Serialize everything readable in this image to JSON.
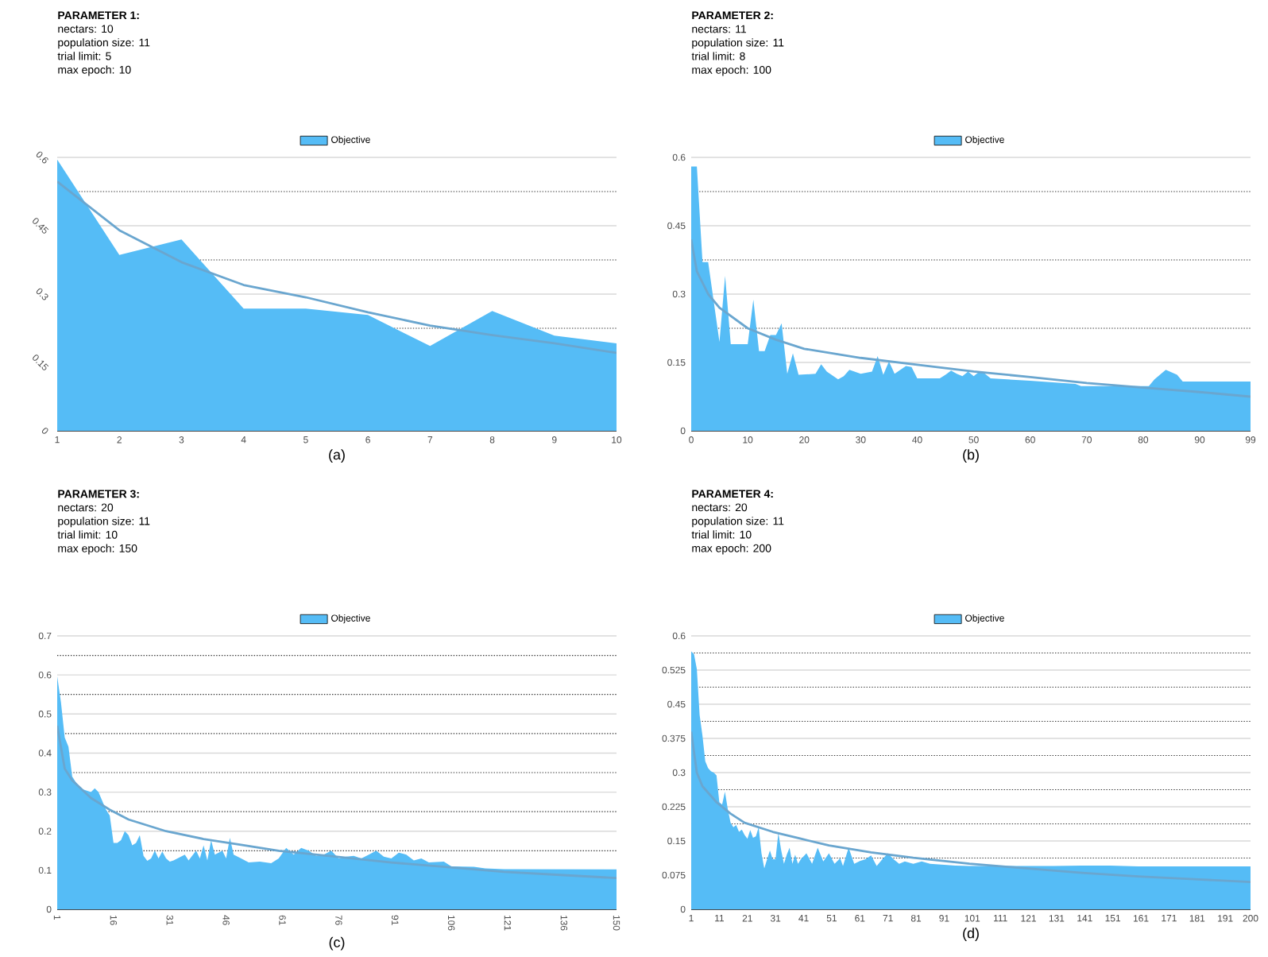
{
  "chart_data": [
    {
      "type": "area",
      "title": "PARAMETER 1:",
      "annotations": [
        "nectars: 10",
        "population size: 11",
        "trial limit: 5",
        "max epoch: 10"
      ],
      "xlabel": "(a)",
      "legend": "top",
      "grid": "y",
      "xlim": [
        1,
        10
      ],
      "xticks": [
        1,
        2,
        3,
        4,
        5,
        6,
        7,
        8,
        9,
        10
      ],
      "ylim": [
        0,
        0.6
      ],
      "yticks": [
        0,
        {
          "value": 0.075,
          "label": null
        },
        0.15,
        {
          "value": 0.225,
          "label": null
        },
        0.3,
        {
          "value": 0.375,
          "label": null
        },
        0.45,
        {
          "value": 0.525,
          "label": null
        },
        0.6
      ],
      "series": [
        {
          "name": "Objective",
          "color": "#55bcf6",
          "x": [
            1,
            2,
            3,
            4,
            5,
            6,
            7,
            8,
            9,
            10
          ],
          "values": [
            0.595,
            0.386,
            0.42,
            0.268,
            0.268,
            0.254,
            0.186,
            0.263,
            0.209,
            0.192
          ]
        },
        {
          "type": "line",
          "color": "#6aa6cf",
          "x": [
            1,
            2,
            3,
            4,
            5,
            6,
            7,
            8,
            9,
            10
          ],
          "values": [
            0.547,
            0.44,
            0.37,
            0.32,
            0.293,
            0.26,
            0.231,
            0.21,
            0.192,
            0.171
          ]
        }
      ]
    },
    {
      "type": "area",
      "title": "PARAMETER 2:",
      "annotations": [
        "nectars: 11",
        "population size: 11",
        "trial limit: 8",
        "max epoch: 100"
      ],
      "xlabel": "(b)",
      "legend": "top",
      "grid": "y",
      "xlim": [
        0,
        99
      ],
      "xticks": [
        0,
        10,
        20,
        30,
        40,
        50,
        60,
        70,
        80,
        90,
        99
      ],
      "ylim": [
        0,
        0.6
      ],
      "yticks": [
        0,
        {
          "value": 0.075,
          "label": null
        },
        0.15,
        {
          "value": 0.225,
          "label": null
        },
        0.3,
        {
          "value": 0.375,
          "label": null
        },
        0.45,
        {
          "value": 0.525,
          "label": null
        },
        0.6
      ],
      "series": [
        {
          "name": "Objective",
          "color": "#55bcf6",
          "x": [
            0,
            1,
            2,
            3,
            5,
            6,
            7,
            10,
            11,
            12,
            13,
            14,
            15,
            16,
            17,
            18,
            19,
            22,
            23,
            24,
            26,
            27,
            28,
            30,
            32,
            33,
            34,
            35,
            36,
            38,
            39,
            40,
            44,
            45,
            46,
            47,
            48,
            49,
            50,
            51,
            52,
            53,
            60,
            68,
            69,
            81,
            82,
            84,
            86,
            87,
            99
          ],
          "values": [
            0.58,
            0.58,
            0.37,
            0.37,
            0.195,
            0.34,
            0.19,
            0.19,
            0.288,
            0.175,
            0.175,
            0.21,
            0.21,
            0.236,
            0.125,
            0.17,
            0.123,
            0.125,
            0.146,
            0.13,
            0.113,
            0.12,
            0.134,
            0.125,
            0.13,
            0.164,
            0.123,
            0.152,
            0.125,
            0.142,
            0.14,
            0.115,
            0.115,
            0.123,
            0.132,
            0.125,
            0.12,
            0.13,
            0.12,
            0.13,
            0.125,
            0.115,
            0.11,
            0.103,
            0.098,
            0.098,
            0.113,
            0.134,
            0.123,
            0.108,
            0.108
          ]
        },
        {
          "type": "line",
          "color": "#6aa6cf",
          "x": [
            0,
            1,
            3,
            5,
            10,
            15,
            20,
            30,
            40,
            50,
            60,
            70,
            80,
            90,
            99
          ],
          "values": [
            0.42,
            0.35,
            0.3,
            0.27,
            0.225,
            0.2,
            0.18,
            0.16,
            0.145,
            0.13,
            0.118,
            0.105,
            0.095,
            0.085,
            0.075
          ]
        }
      ]
    },
    {
      "type": "area",
      "title": "PARAMETER 3:",
      "annotations": [
        "nectars: 20",
        "population size: 11",
        "trial limit: 10",
        "max epoch: 150"
      ],
      "xlabel": "(c)",
      "legend": "top",
      "grid": "y",
      "xlim": [
        1,
        150
      ],
      "xticks": [
        1,
        16,
        31,
        46,
        61,
        76,
        91,
        106,
        121,
        136,
        150
      ],
      "ylim": [
        0,
        0.7
      ],
      "yticks": [
        0,
        0.1,
        {
          "value": 0.15,
          "label": null
        },
        0.2,
        {
          "value": 0.25,
          "label": null
        },
        0.3,
        {
          "value": 0.35,
          "label": null
        },
        0.4,
        {
          "value": 0.45,
          "label": null
        },
        0.5,
        {
          "value": 0.55,
          "label": null
        },
        0.6,
        {
          "value": 0.65,
          "label": null
        },
        0.7
      ],
      "series": [
        {
          "name": "Objective",
          "color": "#55bcf6",
          "x": [
            1,
            2,
            3,
            4,
            5,
            7,
            10,
            11,
            12,
            14,
            15,
            16,
            17,
            18,
            19,
            20,
            21,
            22,
            23,
            24,
            25,
            26,
            27,
            28,
            29,
            30,
            31,
            32,
            35,
            36,
            38,
            39,
            40,
            41,
            42,
            43,
            45,
            46,
            47,
            48,
            50,
            52,
            55,
            58,
            60,
            62,
            64,
            66,
            68,
            70,
            72,
            74,
            76,
            78,
            80,
            82,
            84,
            86,
            88,
            90,
            92,
            94,
            96,
            98,
            100,
            104,
            106,
            112,
            115,
            120,
            150
          ],
          "values": [
            0.596,
            0.53,
            0.44,
            0.416,
            0.34,
            0.31,
            0.3,
            0.31,
            0.3,
            0.255,
            0.24,
            0.17,
            0.17,
            0.177,
            0.2,
            0.19,
            0.164,
            0.17,
            0.19,
            0.137,
            0.124,
            0.13,
            0.15,
            0.13,
            0.148,
            0.13,
            0.122,
            0.125,
            0.14,
            0.125,
            0.15,
            0.13,
            0.164,
            0.125,
            0.177,
            0.14,
            0.15,
            0.13,
            0.183,
            0.14,
            0.13,
            0.12,
            0.122,
            0.118,
            0.13,
            0.157,
            0.14,
            0.157,
            0.15,
            0.137,
            0.14,
            0.15,
            0.13,
            0.135,
            0.137,
            0.13,
            0.14,
            0.15,
            0.135,
            0.13,
            0.145,
            0.14,
            0.125,
            0.13,
            0.12,
            0.122,
            0.11,
            0.109,
            0.105,
            0.103,
            0.102
          ]
        },
        {
          "type": "line",
          "color": "#6aa6cf",
          "x": [
            1,
            3,
            5,
            10,
            15,
            20,
            30,
            40,
            50,
            60,
            75,
            90,
            105,
            120,
            135,
            150
          ],
          "values": [
            0.47,
            0.36,
            0.33,
            0.285,
            0.255,
            0.23,
            0.2,
            0.18,
            0.165,
            0.15,
            0.135,
            0.12,
            0.108,
            0.096,
            0.088,
            0.08
          ]
        }
      ]
    },
    {
      "type": "area",
      "title": "PARAMETER 4:",
      "annotations": [
        "nectars: 20",
        "population size: 11",
        "trial limit: 10",
        "max epoch: 200"
      ],
      "xlabel": "(d)",
      "legend": "top",
      "grid": "y",
      "xlim": [
        1,
        200
      ],
      "xticks": [
        1,
        11,
        21,
        31,
        41,
        51,
        61,
        71,
        81,
        91,
        101,
        111,
        121,
        131,
        141,
        151,
        161,
        171,
        181,
        191,
        200
      ],
      "ylim": [
        0,
        0.6
      ],
      "yticks": [
        0,
        0.075,
        {
          "value": 0.1125,
          "label": null
        },
        0.15,
        {
          "value": 0.1875,
          "label": null
        },
        0.225,
        {
          "value": 0.2625,
          "label": null
        },
        0.3,
        {
          "value": 0.3375,
          "label": null
        },
        0.375,
        {
          "value": 0.4125,
          "label": null
        },
        0.45,
        {
          "value": 0.4875,
          "label": null
        },
        0.525,
        {
          "value": 0.5625,
          "label": null
        },
        0.6
      ],
      "series": [
        {
          "name": "Objective",
          "color": "#55bcf6",
          "x": [
            1,
            2,
            3,
            4,
            5,
            6,
            7,
            8,
            9,
            10,
            11,
            12,
            13,
            14,
            15,
            16,
            17,
            18,
            19,
            20,
            21,
            22,
            23,
            24,
            25,
            26,
            27,
            28,
            29,
            30,
            31,
            32,
            33,
            34,
            35,
            36,
            37,
            38,
            39,
            40,
            42,
            44,
            46,
            48,
            50,
            52,
            54,
            55,
            57,
            59,
            61,
            63,
            65,
            67,
            69,
            71,
            73,
            75,
            77,
            80,
            83,
            86,
            90,
            95,
            100,
            110,
            120,
            130,
            140,
            150,
            160,
            170,
            180,
            190,
            200
          ],
          "values": [
            0.566,
            0.56,
            0.527,
            0.426,
            0.381,
            0.325,
            0.31,
            0.303,
            0.3,
            0.294,
            0.235,
            0.23,
            0.258,
            0.22,
            0.19,
            0.18,
            0.185,
            0.17,
            0.175,
            0.163,
            0.155,
            0.174,
            0.157,
            0.16,
            0.18,
            0.123,
            0.09,
            0.11,
            0.129,
            0.11,
            0.11,
            0.168,
            0.13,
            0.1,
            0.12,
            0.135,
            0.1,
            0.12,
            0.1,
            0.11,
            0.123,
            0.1,
            0.135,
            0.105,
            0.123,
            0.1,
            0.112,
            0.095,
            0.135,
            0.1,
            0.106,
            0.11,
            0.118,
            0.095,
            0.11,
            0.123,
            0.11,
            0.1,
            0.105,
            0.1,
            0.105,
            0.1,
            0.098,
            0.096,
            0.095,
            0.095,
            0.095,
            0.095,
            0.096,
            0.096,
            0.094,
            0.094,
            0.094,
            0.094,
            0.094
          ]
        },
        {
          "type": "line",
          "color": "#6aa6cf",
          "x": [
            1,
            3,
            5,
            10,
            15,
            20,
            30,
            40,
            50,
            65,
            80,
            100,
            120,
            140,
            160,
            180,
            200
          ],
          "values": [
            0.39,
            0.3,
            0.27,
            0.235,
            0.21,
            0.19,
            0.17,
            0.155,
            0.14,
            0.125,
            0.113,
            0.1,
            0.09,
            0.08,
            0.072,
            0.066,
            0.06
          ]
        }
      ]
    }
  ]
}
